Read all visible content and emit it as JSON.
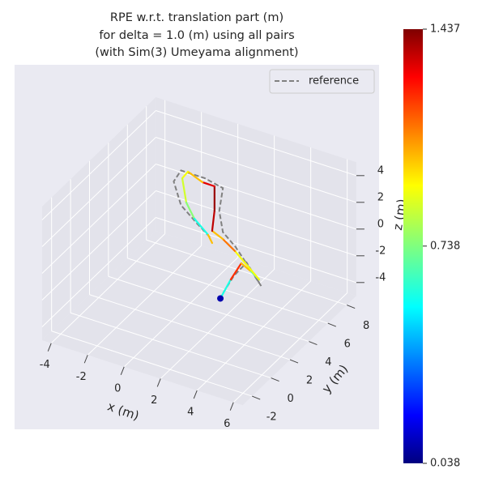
{
  "chart_data": {
    "type": "line3d",
    "title": [
      "RPE w.r.t. translation part (m)",
      "for delta = 1.0 (m) using all pairs",
      "(with Sim(3) Umeyama alignment)"
    ],
    "xlabel": "x (m)",
    "ylabel": "y (m)",
    "zlabel": "z (m)",
    "xlim": [
      -4.5,
      6.5
    ],
    "ylim": [
      -3,
      9
    ],
    "zlim": [
      -5,
      5
    ],
    "xticks": [
      -4,
      -2,
      0,
      2,
      4,
      6
    ],
    "yticks": [
      -2,
      0,
      2,
      4,
      6,
      8
    ],
    "zticks": [
      -4,
      -2,
      0,
      2,
      4
    ],
    "grid": true,
    "legend": "upper right",
    "series": [
      {
        "name": "reference",
        "color": "#808080",
        "dashed": true,
        "x": [
          2.1,
          2.9,
          3.6,
          4.4,
          3.0,
          2.3,
          2.1,
          2.3,
          1.3,
          0.0,
          -0.4,
          0.0,
          0.9,
          1.6
        ],
        "y": [
          3,
          3,
          3,
          3,
          3,
          3,
          3,
          3,
          3,
          3,
          3,
          3,
          3,
          3
        ],
        "z": [
          -3.1,
          -1.0,
          0.3,
          -1.1,
          1.2,
          2.0,
          3.5,
          5.3,
          5.6,
          5.6,
          4.6,
          3.0,
          2.0,
          1.3
        ]
      },
      {
        "colormap": "jet",
        "x": [
          2.16,
          2.73,
          3.31,
          3.84,
          4.29,
          2.96,
          2.29,
          1.71,
          1.84,
          1.84,
          1.18,
          0.38,
          0.07,
          0.29,
          0.73,
          1.49,
          1.71
        ],
        "y": [
          3,
          3,
          3,
          3,
          3,
          3,
          3,
          3,
          3,
          3,
          3,
          3,
          3,
          3,
          3,
          3,
          3
        ],
        "z": [
          -3.02,
          -1.35,
          0.12,
          -0.25,
          -0.66,
          0.88,
          1.49,
          1.84,
          3.41,
          5.23,
          5.24,
          5.68,
          5.05,
          3.33,
          2.32,
          1.44,
          0.93
        ],
        "errors": [
          0.1,
          0.6,
          1.2,
          1.0,
          0.7,
          0.9,
          1.1,
          1.0,
          1.35,
          1.4,
          1.3,
          1.0,
          0.9,
          0.85,
          0.75,
          0.6,
          1.0
        ]
      }
    ],
    "colorbar": {
      "clim": [
        0.038,
        1.437
      ],
      "ticks": [
        0.038,
        0.738,
        1.437
      ]
    }
  }
}
